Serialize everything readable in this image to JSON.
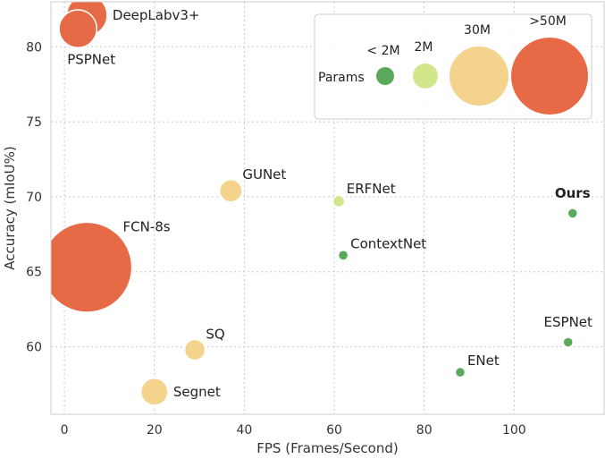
{
  "chart_data": {
    "type": "scatter",
    "title": "",
    "xlabel": "FPS (Frames/Second)",
    "ylabel": "Accuracy (mIoU%)",
    "xlim": [
      -3,
      120
    ],
    "ylim": [
      55.5,
      83
    ],
    "xticks": [
      0,
      20,
      40,
      60,
      80,
      100
    ],
    "yticks": [
      60,
      65,
      70,
      75,
      80
    ],
    "grid": true,
    "colors": {
      "small": "#5aa85a",
      "medium": "#d2e68c",
      "large": "#f4d48c",
      "xlarge": "#e76a47"
    },
    "legend": {
      "placement": "top-right",
      "title": "Params",
      "entries": [
        {
          "label": "< 2M",
          "size_class": "small"
        },
        {
          "label": "2M",
          "size_class": "medium"
        },
        {
          "label": "30M",
          "size_class": "large"
        },
        {
          "label": ">50M",
          "size_class": "xlarge"
        }
      ]
    },
    "points": [
      {
        "name": "DeepLabv3+",
        "x": 5,
        "y": 82.1,
        "size_class": "xlarge",
        "r": 4.5,
        "bold": false,
        "label_pos": "right"
      },
      {
        "name": "PSPNet",
        "x": 3,
        "y": 81.2,
        "size_class": "xlarge",
        "r": 4.2,
        "bold": false,
        "label_pos": "below"
      },
      {
        "name": "FCN-8s",
        "x": 5,
        "y": 65.3,
        "size_class": "xlarge",
        "r": 10,
        "bold": false,
        "label_pos": "upper-right"
      },
      {
        "name": "GUNet",
        "x": 37,
        "y": 70.4,
        "size_class": "large",
        "r": 2.5,
        "bold": false,
        "label_pos": "upper-right"
      },
      {
        "name": "SQ",
        "x": 29,
        "y": 59.8,
        "size_class": "large",
        "r": 2.3,
        "bold": false,
        "label_pos": "upper-right"
      },
      {
        "name": "Segnet",
        "x": 20,
        "y": 57,
        "size_class": "large",
        "r": 3,
        "bold": false,
        "label_pos": "right"
      },
      {
        "name": "ERFNet",
        "x": 61,
        "y": 69.7,
        "size_class": "medium",
        "r": 1.3,
        "bold": false,
        "label_pos": "upper-right"
      },
      {
        "name": "ContextNet",
        "x": 62,
        "y": 66.1,
        "size_class": "small",
        "r": 1.1,
        "bold": false,
        "label_pos": "upper-right"
      },
      {
        "name": "ENet",
        "x": 88,
        "y": 58.3,
        "size_class": "small",
        "r": 1.1,
        "bold": false,
        "label_pos": "upper-right"
      },
      {
        "name": "ESPNet",
        "x": 112,
        "y": 60.3,
        "size_class": "small",
        "r": 1.1,
        "bold": false,
        "label_pos": "above"
      },
      {
        "name": "Ours",
        "x": 113,
        "y": 68.9,
        "size_class": "small",
        "r": 1.1,
        "bold": true,
        "label_pos": "above"
      }
    ]
  }
}
